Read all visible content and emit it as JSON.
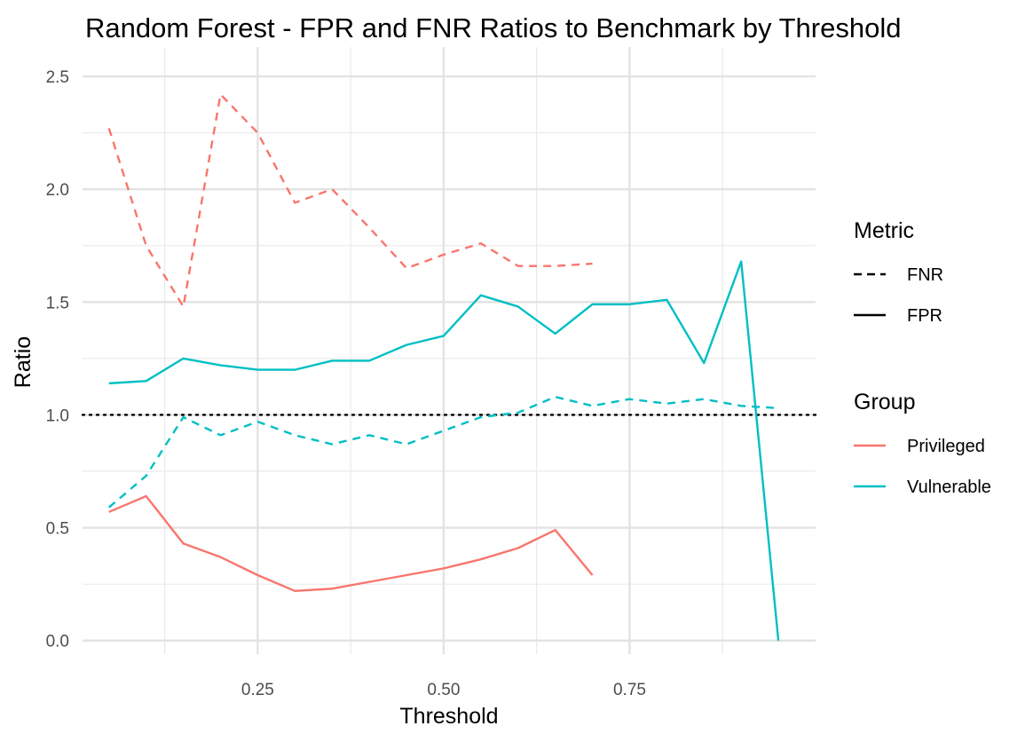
{
  "chart_data": {
    "type": "line",
    "title": "Random Forest - FPR and FNR Ratios to Benchmark by Threshold",
    "xlabel": "Threshold",
    "ylabel": "Ratio",
    "xlim": [
      0.0145,
      1.0
    ],
    "ylim": [
      -0.06,
      2.63
    ],
    "x_ticks": [
      0.25,
      0.5,
      0.75
    ],
    "x_tick_labels": [
      "0.25",
      "0.50",
      "0.75"
    ],
    "y_ticks": [
      0.0,
      0.5,
      1.0,
      1.5,
      2.0,
      2.5
    ],
    "y_tick_labels": [
      "0.0",
      "0.5",
      "1.0",
      "1.5",
      "2.0",
      "2.5"
    ],
    "grid": true,
    "reference_line": {
      "y": 1.0,
      "style": "dotted",
      "color": "#000000"
    },
    "legend": {
      "position": "right",
      "metric_title": "Metric",
      "metric_entries": [
        {
          "label": "FNR",
          "linestyle": "dashed"
        },
        {
          "label": "FPR",
          "linestyle": "solid"
        }
      ],
      "group_title": "Group",
      "group_entries": [
        {
          "label": "Privileged",
          "color": "#F8766D"
        },
        {
          "label": "Vulnerable",
          "color": "#00BFC4"
        }
      ]
    },
    "series": [
      {
        "group": "Privileged",
        "metric": "FNR",
        "color": "#F8766D",
        "linestyle": "dashed",
        "x": [
          0.05,
          0.1,
          0.15,
          0.2,
          0.25,
          0.3,
          0.35,
          0.4,
          0.45,
          0.5,
          0.55,
          0.6,
          0.65,
          0.7
        ],
        "y": [
          2.27,
          1.75,
          1.48,
          2.42,
          2.25,
          1.94,
          2.0,
          1.83,
          1.65,
          1.71,
          1.76,
          1.66,
          1.66,
          1.67
        ]
      },
      {
        "group": "Vulnerable",
        "metric": "FNR",
        "color": "#00BFC4",
        "linestyle": "dashed",
        "x": [
          0.05,
          0.1,
          0.15,
          0.2,
          0.25,
          0.3,
          0.35,
          0.4,
          0.45,
          0.5,
          0.55,
          0.6,
          0.65,
          0.7,
          0.75,
          0.8,
          0.85,
          0.9,
          0.95
        ],
        "y": [
          0.59,
          0.73,
          0.99,
          0.91,
          0.97,
          0.91,
          0.87,
          0.91,
          0.87,
          0.93,
          0.99,
          1.01,
          1.08,
          1.04,
          1.07,
          1.05,
          1.07,
          1.04,
          1.03
        ]
      },
      {
        "group": "Privileged",
        "metric": "FPR",
        "color": "#F8766D",
        "linestyle": "solid",
        "x": [
          0.05,
          0.1,
          0.15,
          0.2,
          0.25,
          0.3,
          0.35,
          0.4,
          0.45,
          0.5,
          0.55,
          0.6,
          0.65,
          0.7
        ],
        "y": [
          0.57,
          0.64,
          0.43,
          0.37,
          0.29,
          0.22,
          0.23,
          0.26,
          0.29,
          0.32,
          0.36,
          0.41,
          0.49,
          0.29
        ]
      },
      {
        "group": "Vulnerable",
        "metric": "FPR",
        "color": "#00BFC4",
        "linestyle": "solid",
        "x": [
          0.05,
          0.1,
          0.15,
          0.2,
          0.25,
          0.3,
          0.35,
          0.4,
          0.45,
          0.5,
          0.55,
          0.6,
          0.65,
          0.7,
          0.75,
          0.8,
          0.85,
          0.9,
          0.95
        ],
        "y": [
          1.14,
          1.15,
          1.25,
          1.22,
          1.2,
          1.2,
          1.24,
          1.24,
          1.31,
          1.35,
          1.53,
          1.48,
          1.36,
          1.49,
          1.49,
          1.51,
          1.23,
          1.68,
          0.0
        ]
      }
    ]
  }
}
